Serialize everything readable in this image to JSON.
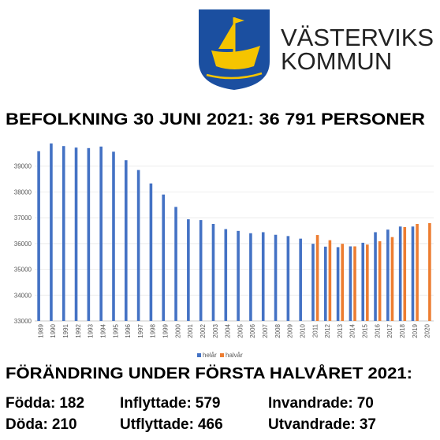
{
  "header": {
    "logo_line1": "VÄSTERVIKS",
    "logo_line2": "KOMMUN"
  },
  "headline": "BEFOLKNING 30 JUNI 2021: 36 791 PERSONER",
  "chart_data": {
    "type": "bar",
    "categories": [
      "1989",
      "1990",
      "1991",
      "1992",
      "1993",
      "1994",
      "1995",
      "1996",
      "1997",
      "1998",
      "1999",
      "2000",
      "2001",
      "2002",
      "2003",
      "2004",
      "2005",
      "2006",
      "2007",
      "2008",
      "2009",
      "2010",
      "2011",
      "2012",
      "2013",
      "2014",
      "2015",
      "2016",
      "2017",
      "2018",
      "2019",
      "2020"
    ],
    "series": [
      {
        "name": "helår",
        "color": "#4472c4",
        "values": [
          39580,
          39880,
          39780,
          39720,
          39700,
          39760,
          39560,
          39230,
          38850,
          38330,
          37900,
          37420,
          36940,
          36910,
          36760,
          36560,
          36490,
          36400,
          36440,
          36340,
          36290,
          36190,
          35990,
          35880,
          35860,
          35890,
          36030,
          36440,
          36540,
          36660,
          36660,
          null
        ]
      },
      {
        "name": "halvår",
        "color": "#ed7d31",
        "values": [
          null,
          null,
          null,
          null,
          null,
          null,
          null,
          null,
          null,
          null,
          null,
          null,
          null,
          null,
          null,
          null,
          null,
          null,
          null,
          null,
          null,
          null,
          36330,
          36130,
          35990,
          35890,
          35960,
          36090,
          36250,
          36640,
          36760,
          36791
        ]
      }
    ],
    "ylim": [
      33000,
      40000
    ],
    "yticks": [
      33000,
      34000,
      35000,
      36000,
      37000,
      38000,
      39000
    ],
    "grid": true
  },
  "changes": {
    "title": "FÖRÄNDRING UNDER FÖRSTA HALVÅRET 2021:",
    "items": [
      {
        "label": "Födda:",
        "value": 182
      },
      {
        "label": "Inflyttade:",
        "value": 579
      },
      {
        "label": "Invandrade:",
        "value": 70
      },
      {
        "label": "Döda:",
        "value": 210
      },
      {
        "label": "Utflyttade:",
        "value": 466
      },
      {
        "label": "Utvandrade:",
        "value": 37
      }
    ]
  }
}
